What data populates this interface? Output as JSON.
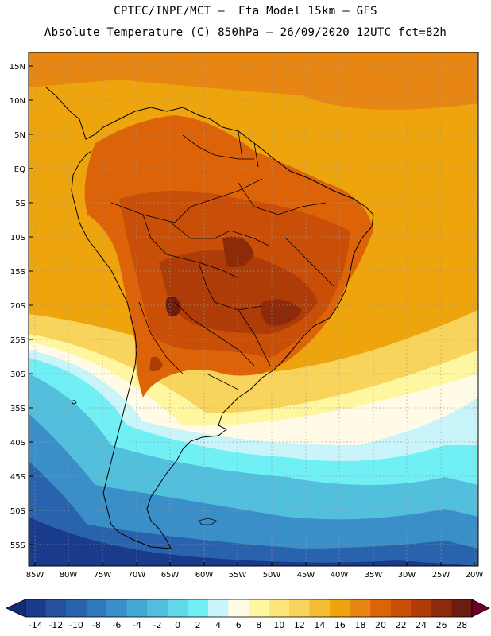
{
  "header": {
    "line1": "CPTEC/INPE/MCT –  Eta Model 15km – GFS",
    "line2": "Absolute Temperature (C) 850hPa – 26/09/2020 12UTC fct=82h"
  },
  "map": {
    "lon_ticks": [
      "85W",
      "80W",
      "75W",
      "70W",
      "65W",
      "60W",
      "55W",
      "50W",
      "45W",
      "40W",
      "35W",
      "30W",
      "25W",
      "20W"
    ],
    "lat_ticks": [
      "15N",
      "10N",
      "5N",
      "EQ",
      "5S",
      "10S",
      "15S",
      "20S",
      "25S",
      "30S",
      "35S",
      "40S",
      "45S",
      "50S",
      "55S"
    ],
    "lon_range": [
      -86,
      -19
    ],
    "lat_range": [
      17,
      -58
    ]
  },
  "colorbar": {
    "labels": [
      "-14",
      "-12",
      "-10",
      "-8",
      "-6",
      "-4",
      "-2",
      "0",
      "2",
      "4",
      "6",
      "8",
      "10",
      "12",
      "14",
      "16",
      "18",
      "20",
      "22",
      "24",
      "26",
      "28"
    ],
    "colors": [
      "#1a3b8c",
      "#24509e",
      "#2a63ad",
      "#2f78bb",
      "#3a8fc8",
      "#45a8d4",
      "#52c0dd",
      "#63d8e8",
      "#70f0f4",
      "#c8f4fa",
      "#fffbe6",
      "#fff6a0",
      "#fde57c",
      "#f9d45c",
      "#f3be33",
      "#eda40d",
      "#e88614",
      "#dd6309",
      "#c94e08",
      "#ad3c08",
      "#8c2a0a",
      "#6d1c10"
    ],
    "low_color": "#142c73",
    "high_color": "#6b0026"
  }
}
